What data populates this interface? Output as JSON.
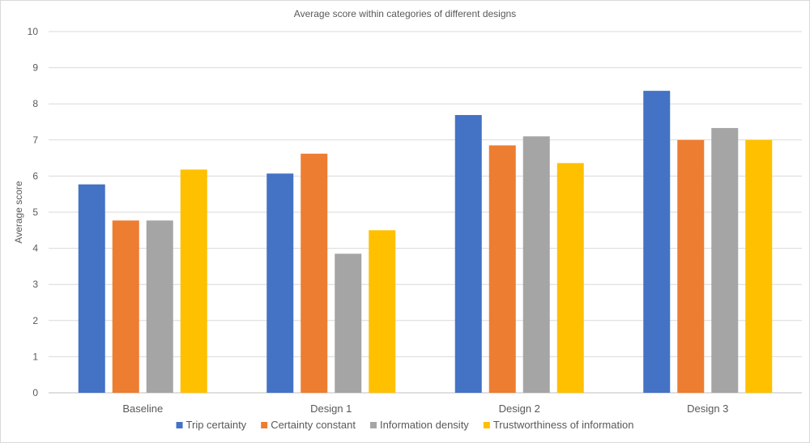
{
  "chart_data": {
    "type": "bar",
    "title": "Average score within categories of different designs",
    "xlabel": "",
    "ylabel": "Average score",
    "ylim": [
      0,
      10
    ],
    "yticks": [
      0,
      1,
      2,
      3,
      4,
      5,
      6,
      7,
      8,
      9,
      10
    ],
    "categories": [
      "Baseline",
      "Design 1",
      "Design 2",
      "Design 3"
    ],
    "series": [
      {
        "name": "Trip certainty",
        "color": "#4472C4",
        "values": [
          5.77,
          6.07,
          7.69,
          8.36
        ]
      },
      {
        "name": "Certainty constant",
        "color": "#ED7D31",
        "values": [
          4.77,
          6.62,
          6.85,
          7.0
        ]
      },
      {
        "name": "Information density",
        "color": "#A5A5A5",
        "values": [
          4.77,
          3.85,
          7.1,
          7.33
        ]
      },
      {
        "name": "Trustworthiness of information",
        "color": "#FFC000",
        "values": [
          6.18,
          4.5,
          6.36,
          7.0
        ]
      }
    ],
    "grid": true,
    "legend_position": "bottom"
  }
}
